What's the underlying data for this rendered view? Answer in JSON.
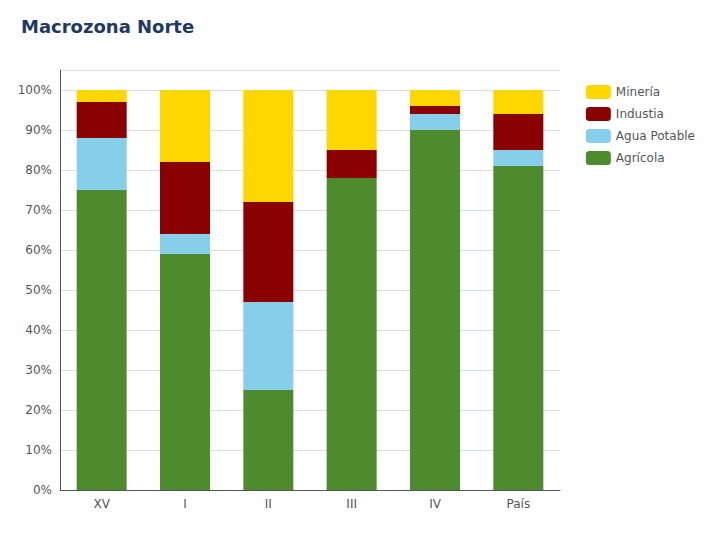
{
  "chart_data": {
    "type": "bar",
    "title": "Macrozona Norte",
    "categories": [
      "XV",
      "I",
      "II",
      "III",
      "IV",
      "País"
    ],
    "stacked": true,
    "series": [
      {
        "name": "Agrícola",
        "color": "#4e8a2e",
        "values": [
          75,
          59,
          25,
          78,
          90,
          81
        ]
      },
      {
        "name": "Agua Potable",
        "color": "#87ceeb",
        "values": [
          13,
          5,
          22,
          0,
          4,
          4
        ]
      },
      {
        "name": "Industia",
        "color": "#8b0000",
        "values": [
          9,
          18,
          25,
          7,
          2,
          9
        ]
      },
      {
        "name": "Minería",
        "color": "#ffd700",
        "values": [
          3,
          18,
          28,
          15,
          4,
          6
        ]
      }
    ],
    "ylim": [
      0,
      105
    ],
    "yticks": [
      {
        "value": 0,
        "label": "0%"
      },
      {
        "value": 10,
        "label": "10%"
      },
      {
        "value": 20,
        "label": "20%"
      },
      {
        "value": 30,
        "label": "30%"
      },
      {
        "value": 40,
        "label": "40%"
      },
      {
        "value": 50,
        "label": "50%"
      },
      {
        "value": 60,
        "label": "60%"
      },
      {
        "value": 70,
        "label": "70%"
      },
      {
        "value": 80,
        "label": "80%"
      },
      {
        "value": 90,
        "label": "90%"
      },
      {
        "value": 100,
        "label": "100%"
      }
    ],
    "grid": true,
    "legend": "right"
  }
}
